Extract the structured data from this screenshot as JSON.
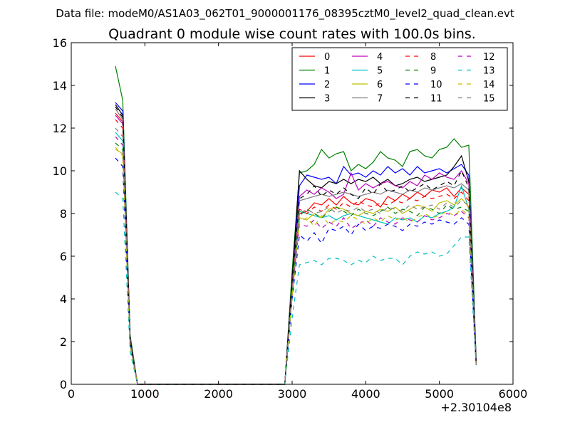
{
  "suptitle": "Data file: modeM0/AS1A03_062T01_9000001176_08395cztM0_level2_quad_clean.evt",
  "chart_data": {
    "type": "line",
    "title": "Quadrant 0 module wise count rates with 100.0s bins.",
    "xlabel": "",
    "ylabel": "",
    "x_offset_label": "+2.30104e8",
    "xlim": [
      0,
      6000
    ],
    "ylim": [
      0,
      16
    ],
    "x_ticks": [
      "0",
      "1000",
      "2000",
      "3000",
      "4000",
      "5000",
      "6000"
    ],
    "y_ticks": [
      "0",
      "2",
      "4",
      "6",
      "8",
      "10",
      "12",
      "14",
      "16"
    ],
    "grid": false,
    "legend_position": "top-right",
    "legend_columns": 4,
    "x": [
      600,
      700,
      800,
      900,
      1000,
      1100,
      1200,
      1300,
      1400,
      1500,
      1600,
      1700,
      1800,
      1900,
      2000,
      2100,
      2200,
      2300,
      2400,
      2500,
      2600,
      2700,
      2800,
      2900,
      3000,
      3100,
      3200,
      3300,
      3400,
      3500,
      3600,
      3700,
      3800,
      3900,
      4000,
      4100,
      4200,
      4300,
      4400,
      4500,
      4600,
      4700,
      4800,
      4900,
      5000,
      5100,
      5200,
      5300,
      5400,
      5500
    ],
    "series": [
      {
        "name": "0",
        "color": "#ff0000",
        "dash": "solid",
        "values": [
          12.7,
          12.3,
          2.0,
          0,
          0,
          0,
          0,
          0,
          0,
          0,
          0,
          0,
          0,
          0,
          0,
          0,
          0,
          0,
          0,
          0,
          0,
          0,
          0,
          0,
          4.6,
          8.0,
          8.1,
          8.5,
          8.4,
          8.7,
          8.4,
          8.8,
          8.5,
          8.4,
          8.7,
          8.6,
          8.3,
          8.8,
          8.6,
          8.9,
          8.7,
          9.0,
          8.8,
          9.1,
          9.0,
          9.2,
          8.8,
          9.2,
          8.9,
          1.0
        ]
      },
      {
        "name": "1",
        "color": "#008000",
        "dash": "solid",
        "values": [
          14.9,
          13.3,
          2.3,
          0,
          0,
          0,
          0,
          0,
          0,
          0,
          0,
          0,
          0,
          0,
          0,
          0,
          0,
          0,
          0,
          0,
          0,
          0,
          0,
          0,
          5.3,
          9.9,
          10.0,
          10.3,
          11.0,
          10.6,
          10.8,
          10.9,
          10.0,
          10.3,
          10.1,
          10.4,
          10.9,
          10.6,
          10.5,
          10.2,
          10.9,
          11.0,
          10.7,
          10.6,
          11.0,
          11.1,
          11.5,
          11.1,
          11.2,
          1.2
        ]
      },
      {
        "name": "2",
        "color": "#0000ff",
        "dash": "solid",
        "values": [
          13.2,
          12.8,
          2.1,
          0,
          0,
          0,
          0,
          0,
          0,
          0,
          0,
          0,
          0,
          0,
          0,
          0,
          0,
          0,
          0,
          0,
          0,
          0,
          0,
          0,
          4.9,
          9.3,
          9.8,
          9.7,
          9.6,
          9.7,
          9.4,
          10.2,
          9.8,
          9.9,
          9.7,
          10.0,
          9.8,
          10.2,
          9.9,
          10.1,
          9.8,
          10.2,
          9.9,
          10.0,
          10.1,
          9.9,
          10.1,
          10.3,
          9.8,
          1.1
        ]
      },
      {
        "name": "3",
        "color": "#000000",
        "dash": "solid",
        "values": [
          13.1,
          12.6,
          2.1,
          0,
          0,
          0,
          0,
          0,
          0,
          0,
          0,
          0,
          0,
          0,
          0,
          0,
          0,
          0,
          0,
          0,
          0,
          0,
          0,
          0,
          4.9,
          10.0,
          9.6,
          9.3,
          9.2,
          9.5,
          9.4,
          9.6,
          9.4,
          9.6,
          9.5,
          9.7,
          9.4,
          9.6,
          9.3,
          9.4,
          9.6,
          9.7,
          9.5,
          9.6,
          9.7,
          9.8,
          10.2,
          10.7,
          9.5,
          1.0
        ]
      },
      {
        "name": "4",
        "color": "#bf00bf",
        "dash": "solid",
        "values": [
          12.6,
          12.2,
          2.0,
          0,
          0,
          0,
          0,
          0,
          0,
          0,
          0,
          0,
          0,
          0,
          0,
          0,
          0,
          0,
          0,
          0,
          0,
          0,
          0,
          0,
          4.6,
          8.8,
          9.1,
          8.9,
          9.2,
          9.0,
          8.7,
          8.9,
          9.9,
          9.1,
          9.4,
          9.2,
          9.4,
          9.5,
          9.3,
          9.2,
          9.5,
          9.3,
          9.8,
          9.6,
          9.9,
          9.7,
          9.6,
          10.0,
          9.4,
          1.0
        ]
      },
      {
        "name": "5",
        "color": "#00bfbf",
        "dash": "solid",
        "values": [
          11.8,
          11.4,
          1.9,
          0,
          0,
          0,
          0,
          0,
          0,
          0,
          0,
          0,
          0,
          0,
          0,
          0,
          0,
          0,
          0,
          0,
          0,
          0,
          0,
          0,
          4.3,
          8.1,
          8.0,
          7.9,
          7.8,
          7.9,
          7.7,
          7.9,
          8.0,
          7.9,
          7.8,
          7.7,
          7.6,
          7.5,
          7.8,
          7.7,
          7.8,
          7.6,
          7.9,
          7.8,
          8.0,
          8.1,
          8.3,
          9.3,
          8.2,
          0.9
        ]
      },
      {
        "name": "6",
        "color": "#bfbf00",
        "dash": "solid",
        "values": [
          11.0,
          10.8,
          1.8,
          0,
          0,
          0,
          0,
          0,
          0,
          0,
          0,
          0,
          0,
          0,
          0,
          0,
          0,
          0,
          0,
          0,
          0,
          0,
          0,
          0,
          4.1,
          7.8,
          7.7,
          8.0,
          7.8,
          8.2,
          8.3,
          8.2,
          8.0,
          7.9,
          8.1,
          8.0,
          8.2,
          8.1,
          8.3,
          8.0,
          8.2,
          8.4,
          8.3,
          8.1,
          8.5,
          8.6,
          8.4,
          8.7,
          8.3,
          0.9
        ]
      },
      {
        "name": "7",
        "color": "#808080",
        "dash": "solid",
        "values": [
          12.9,
          12.4,
          2.0,
          0,
          0,
          0,
          0,
          0,
          0,
          0,
          0,
          0,
          0,
          0,
          0,
          0,
          0,
          0,
          0,
          0,
          0,
          0,
          0,
          0,
          4.6,
          8.6,
          8.7,
          8.8,
          8.9,
          8.8,
          8.9,
          9.0,
          8.9,
          8.8,
          8.9,
          9.0,
          8.9,
          9.1,
          9.0,
          8.9,
          9.1,
          9.0,
          9.2,
          9.1,
          9.2,
          9.3,
          9.2,
          9.4,
          9.1,
          1.0
        ]
      },
      {
        "name": "8",
        "color": "#ff0000",
        "dash": "dashed",
        "values": [
          12.4,
          12.0,
          2.0,
          0,
          0,
          0,
          0,
          0,
          0,
          0,
          0,
          0,
          0,
          0,
          0,
          0,
          0,
          0,
          0,
          0,
          0,
          0,
          0,
          0,
          4.5,
          8.2,
          8.0,
          8.3,
          8.1,
          8.4,
          8.2,
          8.5,
          8.3,
          8.6,
          8.4,
          8.3,
          8.5,
          8.4,
          8.6,
          8.5,
          8.7,
          8.6,
          8.8,
          8.7,
          8.8,
          8.9,
          8.7,
          9.0,
          8.6,
          1.0
        ]
      },
      {
        "name": "9",
        "color": "#008000",
        "dash": "dashed",
        "values": [
          11.3,
          11.0,
          1.9,
          0,
          0,
          0,
          0,
          0,
          0,
          0,
          0,
          0,
          0,
          0,
          0,
          0,
          0,
          0,
          0,
          0,
          0,
          0,
          0,
          0,
          4.2,
          7.9,
          8.2,
          8.0,
          7.8,
          8.1,
          8.3,
          8.1,
          7.9,
          8.2,
          8.0,
          7.9,
          8.1,
          8.3,
          8.0,
          8.2,
          8.1,
          7.9,
          8.3,
          8.2,
          8.0,
          8.4,
          8.2,
          8.3,
          8.1,
          0.9
        ]
      },
      {
        "name": "10",
        "color": "#0000ff",
        "dash": "dashed",
        "values": [
          10.6,
          10.2,
          1.8,
          0,
          0,
          0,
          0,
          0,
          0,
          0,
          0,
          0,
          0,
          0,
          0,
          0,
          0,
          0,
          0,
          0,
          0,
          0,
          0,
          0,
          4.0,
          7.0,
          6.7,
          7.1,
          6.6,
          7.3,
          7.2,
          7.4,
          7.0,
          7.5,
          7.2,
          7.4,
          7.3,
          7.5,
          7.4,
          7.2,
          7.5,
          7.4,
          7.6,
          7.5,
          7.7,
          7.6,
          7.5,
          7.8,
          7.5,
          0.9
        ]
      },
      {
        "name": "11",
        "color": "#000000",
        "dash": "dashed",
        "values": [
          13.0,
          12.5,
          2.1,
          0,
          0,
          0,
          0,
          0,
          0,
          0,
          0,
          0,
          0,
          0,
          0,
          0,
          0,
          0,
          0,
          0,
          0,
          0,
          0,
          0,
          4.8,
          8.7,
          8.9,
          9.3,
          8.8,
          9.1,
          8.9,
          9.2,
          8.9,
          8.7,
          9.2,
          8.9,
          9.4,
          9.0,
          9.1,
          9.3,
          9.0,
          9.2,
          9.4,
          9.1,
          9.3,
          9.5,
          9.3,
          10.0,
          9.2,
          1.0
        ]
      },
      {
        "name": "12",
        "color": "#bf00bf",
        "dash": "dashed",
        "values": [
          11.6,
          11.2,
          1.9,
          0,
          0,
          0,
          0,
          0,
          0,
          0,
          0,
          0,
          0,
          0,
          0,
          0,
          0,
          0,
          0,
          0,
          0,
          0,
          0,
          0,
          4.3,
          7.5,
          7.4,
          7.7,
          7.3,
          7.6,
          7.4,
          7.8,
          7.3,
          7.5,
          7.7,
          7.4,
          7.8,
          7.6,
          7.5,
          7.8,
          7.7,
          7.6,
          7.9,
          7.7,
          7.8,
          8.0,
          7.9,
          8.1,
          7.8,
          0.9
        ]
      },
      {
        "name": "13",
        "color": "#00bfbf",
        "dash": "dashed",
        "values": [
          9.0,
          8.7,
          1.5,
          0,
          0,
          0,
          0,
          0,
          0,
          0,
          0,
          0,
          0,
          0,
          0,
          0,
          0,
          0,
          0,
          0,
          0,
          0,
          0,
          0,
          3.1,
          5.6,
          5.7,
          5.8,
          5.6,
          5.9,
          5.9,
          5.8,
          5.6,
          5.8,
          5.7,
          6.0,
          5.8,
          5.9,
          5.9,
          5.6,
          6.0,
          6.2,
          6.1,
          6.2,
          6.0,
          6.1,
          6.5,
          6.9,
          6.9,
          0.8
        ]
      },
      {
        "name": "14",
        "color": "#bfbf00",
        "dash": "dashed",
        "values": [
          11.1,
          10.7,
          1.8,
          0,
          0,
          0,
          0,
          0,
          0,
          0,
          0,
          0,
          0,
          0,
          0,
          0,
          0,
          0,
          0,
          0,
          0,
          0,
          0,
          0,
          4.1,
          7.6,
          7.8,
          7.4,
          7.9,
          7.5,
          7.7,
          7.6,
          7.9,
          7.7,
          7.5,
          7.8,
          7.6,
          7.9,
          7.7,
          7.8,
          7.6,
          7.8,
          8.0,
          7.8,
          7.9,
          8.1,
          7.9,
          8.2,
          7.9,
          0.9
        ]
      },
      {
        "name": "15",
        "color": "#808080",
        "dash": "dashed",
        "values": [
          12.0,
          11.6,
          1.9,
          0,
          0,
          0,
          0,
          0,
          0,
          0,
          0,
          0,
          0,
          0,
          0,
          0,
          0,
          0,
          0,
          0,
          0,
          0,
          0,
          0,
          4.4,
          8.0,
          8.2,
          8.0,
          8.1,
          8.3,
          8.0,
          8.2,
          8.1,
          8.3,
          8.1,
          8.2,
          8.0,
          8.3,
          8.2,
          8.1,
          8.4,
          8.2,
          8.3,
          8.4,
          8.2,
          8.5,
          8.3,
          8.6,
          8.4,
          0.9
        ]
      }
    ]
  }
}
